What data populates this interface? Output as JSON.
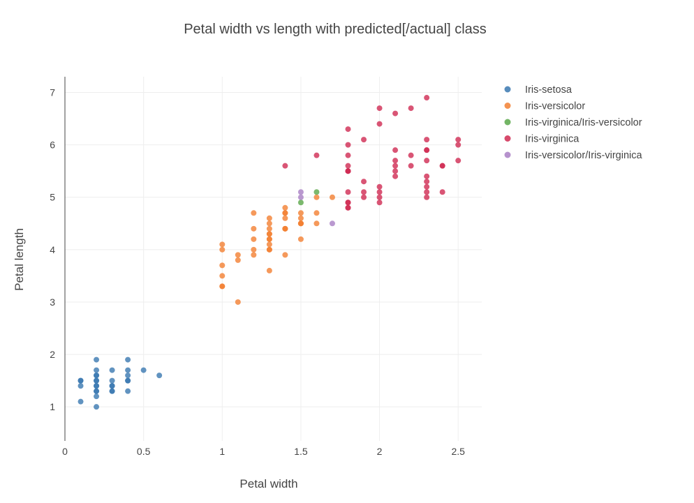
{
  "chart_data": {
    "type": "scatter",
    "title": "Petal width vs length with predicted[/actual] class",
    "xlabel": "Petal width",
    "ylabel": "Petal length",
    "xlim": [
      0,
      2.65
    ],
    "ylim": [
      0.35,
      7.3
    ],
    "xticks": [
      "0",
      "0.5",
      "1",
      "1.5",
      "2",
      "2.5"
    ],
    "yticks": [
      "1",
      "2",
      "3",
      "4",
      "5",
      "6",
      "7"
    ],
    "grid": true,
    "legend_position": "top-right",
    "series": [
      {
        "name": "Iris-setosa",
        "color": "#3a78b0",
        "x": [
          0.1,
          0.1,
          0.1,
          0.1,
          0.2,
          0.2,
          0.2,
          0.2,
          0.2,
          0.2,
          0.2,
          0.2,
          0.2,
          0.2,
          0.3,
          0.3,
          0.3,
          0.3,
          0.3,
          0.3,
          0.4,
          0.4,
          0.4,
          0.4,
          0.4,
          0.4,
          0.5,
          0.6,
          0.2,
          0.2
        ],
        "y": [
          1.5,
          1.4,
          1.1,
          1.5,
          1.9,
          1.7,
          1.6,
          1.5,
          1.4,
          1.3,
          1.2,
          1.0,
          1.6,
          1.4,
          1.7,
          1.5,
          1.4,
          1.3,
          1.4,
          1.3,
          1.9,
          1.7,
          1.6,
          1.5,
          1.3,
          1.5,
          1.7,
          1.6,
          1.5,
          1.3
        ]
      },
      {
        "name": "Iris-versicolor",
        "color": "#f28032",
        "x": [
          1.0,
          1.0,
          1.0,
          1.0,
          1.0,
          1.1,
          1.1,
          1.1,
          1.2,
          1.2,
          1.2,
          1.2,
          1.2,
          1.3,
          1.3,
          1.3,
          1.3,
          1.3,
          1.3,
          1.3,
          1.3,
          1.3,
          1.4,
          1.4,
          1.4,
          1.4,
          1.4,
          1.4,
          1.4,
          1.5,
          1.5,
          1.5,
          1.5,
          1.5,
          1.5,
          1.6,
          1.6,
          1.6,
          1.7,
          1.0,
          1.3,
          1.3,
          1.4
        ],
        "y": [
          4.1,
          4.0,
          3.7,
          3.5,
          3.3,
          3.9,
          3.8,
          3.0,
          4.7,
          4.4,
          4.2,
          4.0,
          3.9,
          4.6,
          4.5,
          4.4,
          4.3,
          4.2,
          4.1,
          4.0,
          3.6,
          4.0,
          4.8,
          4.7,
          4.6,
          4.4,
          3.9,
          4.7,
          4.4,
          4.7,
          4.6,
          4.5,
          4.2,
          4.5,
          4.5,
          4.7,
          4.5,
          5.0,
          5.0,
          3.3,
          4.3,
          4.2,
          4.4
        ]
      },
      {
        "name": "Iris-virginica/Iris-versicolor",
        "color": "#5ba84a",
        "x": [
          1.5,
          1.6
        ],
        "y": [
          4.9,
          5.1
        ]
      },
      {
        "name": "Iris-virginica",
        "color": "#d02a52",
        "x": [
          1.4,
          1.6,
          1.8,
          1.8,
          1.8,
          1.8,
          1.8,
          1.8,
          1.8,
          1.8,
          1.8,
          1.9,
          1.9,
          1.9,
          1.9,
          2.0,
          2.0,
          2.0,
          2.0,
          2.0,
          2.0,
          2.1,
          2.1,
          2.1,
          2.1,
          2.1,
          2.1,
          2.2,
          2.2,
          2.2,
          2.3,
          2.3,
          2.3,
          2.3,
          2.3,
          2.3,
          2.3,
          2.3,
          2.3,
          2.4,
          2.4,
          2.5,
          2.5,
          2.5,
          1.8,
          1.8,
          1.8,
          2.4,
          2.3
        ],
        "y": [
          5.6,
          5.8,
          6.3,
          6.0,
          5.8,
          5.6,
          5.5,
          5.1,
          4.9,
          4.8,
          5.5,
          6.1,
          5.3,
          5.1,
          5.0,
          6.7,
          6.4,
          5.2,
          5.1,
          5.0,
          4.9,
          6.6,
          5.9,
          5.7,
          5.6,
          5.5,
          5.4,
          6.7,
          5.8,
          5.6,
          6.9,
          6.1,
          5.9,
          5.7,
          5.4,
          5.3,
          5.2,
          5.1,
          5.0,
          5.6,
          5.1,
          6.1,
          6.0,
          5.7,
          4.9,
          4.8,
          5.5,
          5.6,
          5.9
        ]
      },
      {
        "name": "Iris-versicolor/Iris-virginica",
        "color": "#a97fc4",
        "x": [
          1.5,
          1.5,
          1.7
        ],
        "y": [
          5.1,
          5.0,
          4.5
        ]
      }
    ]
  }
}
